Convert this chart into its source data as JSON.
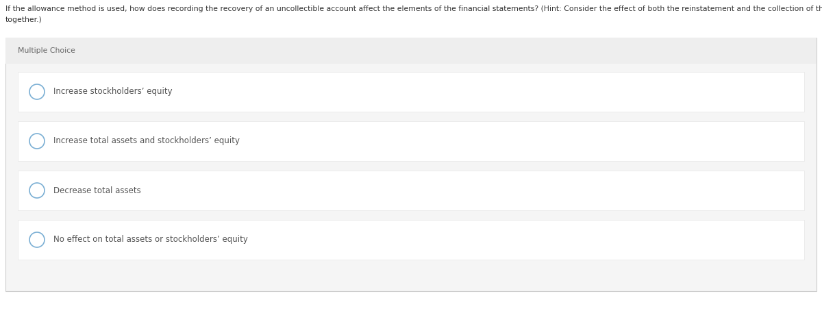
{
  "question_line1": "If the allowance method is used, how does recording the recovery of an uncollectible account affect the elements of the financial statements? (Hint: Consider the effect of both the reinstatement and the collection of the receivable taken",
  "question_line2": "together.)",
  "label": "Multiple Choice",
  "choices": [
    "Increase stockholders’ equity",
    "Increase total assets and stockholders’ equity",
    "Decrease total assets",
    "No effect on total assets or stockholders’ equity"
  ],
  "bg_color": "#ffffff",
  "question_color": "#333333",
  "label_color": "#666666",
  "choice_color": "#555555",
  "panel_bg": "#f5f5f5",
  "choice_bg": "#ffffff",
  "choice_border": "#e5e5e5",
  "circle_edge": "#7bafd4",
  "label_header_bg": "#eeeeee",
  "fig_width": 12.0,
  "fig_height": 4.54,
  "question_fontsize": 7.8,
  "label_fontsize": 7.8,
  "choice_fontsize": 8.5
}
